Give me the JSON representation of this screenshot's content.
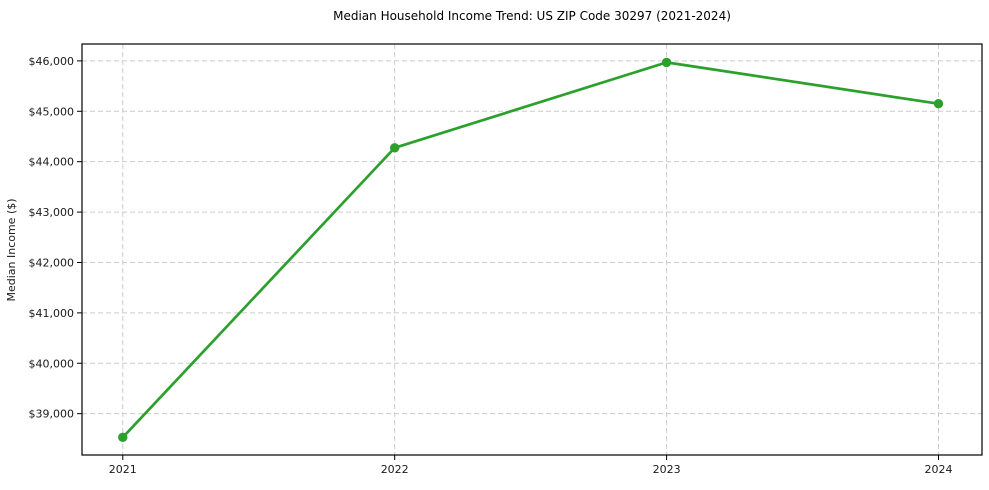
{
  "chart_data": {
    "type": "line",
    "title": "Median Household Income Trend: US ZIP Code 30297 (2021-2024)",
    "xlabel": "",
    "ylabel": "Median Income ($)",
    "x": [
      2021,
      2022,
      2023,
      2024
    ],
    "series": [
      {
        "name": "Median Household Income",
        "values": [
          38530,
          44275,
          45970,
          45150
        ]
      }
    ],
    "xticks": [
      2021,
      2022,
      2023,
      2024
    ],
    "xtick_labels": [
      "2021",
      "2022",
      "2023",
      "2024"
    ],
    "yticks": [
      39000,
      40000,
      41000,
      42000,
      43000,
      44000,
      45000,
      46000
    ],
    "ytick_labels": [
      "$39,000",
      "$40,000",
      "$41,000",
      "$42,000",
      "$43,000",
      "$44,000",
      "$45,000",
      "$46,000"
    ],
    "xlim": [
      2020.85,
      2024.16
    ],
    "ylim": [
      38180,
      46335
    ],
    "grid": true,
    "legend": "none",
    "line_color": "#2ca02c",
    "marker": "circle",
    "marker_radius": 4.7,
    "line_width": 2.7,
    "grid_color": "#cccccc",
    "spine_color": "#000000",
    "text_color": "#1a1a1a",
    "background_color": "#ffffff"
  }
}
